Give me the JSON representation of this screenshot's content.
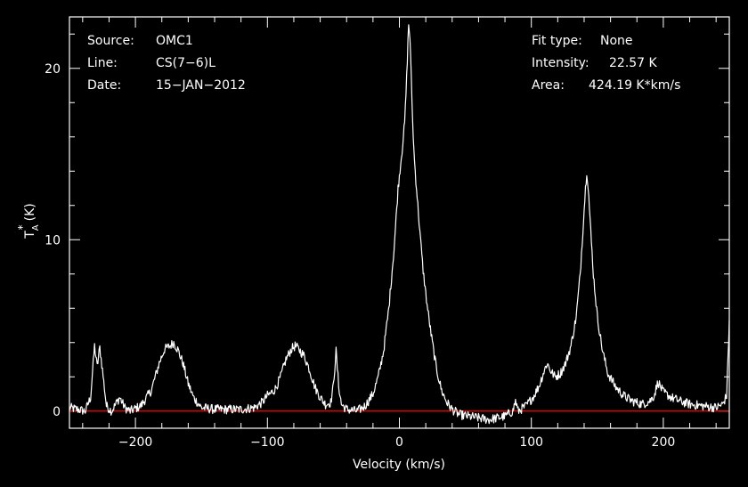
{
  "header": {
    "source_label": "Source:",
    "source_value": "OMC1",
    "line_label": "Line:",
    "line_value": "CS(7−6)L",
    "date_label": "Date:",
    "date_value": "15−JAN−2012",
    "fit_label": "Fit type:",
    "fit_value": "None",
    "intensity_label": "Intensity:",
    "intensity_value": "22.57 K",
    "area_label": "Area:",
    "area_value": "424.19 K*km/s"
  },
  "colors": {
    "background": "#000000",
    "spectrum": "#ffffff",
    "baseline": "#ff0000",
    "axes": "#ffffff"
  },
  "chart_data": {
    "type": "line",
    "title": "",
    "xlabel": "Velocity (km/s)",
    "ylabel": "T_A^* (K)",
    "ylabel_main": "T",
    "ylabel_sup": "*",
    "ylabel_sub": "A",
    "ylabel_unit": "(K)",
    "xlim": [
      -250,
      250
    ],
    "ylim": [
      -1,
      23
    ],
    "x_ticks": [
      -200,
      -100,
      0,
      100,
      200
    ],
    "x_tick_labels": [
      "−200",
      "−100",
      "0",
      "100",
      "200"
    ],
    "y_ticks": [
      0,
      10,
      20
    ],
    "y_tick_labels": [
      "0",
      "10",
      "20"
    ],
    "baseline": 0,
    "grid": false,
    "series": [
      {
        "x": [
          -250,
          -244,
          -238,
          -234,
          -231,
          -229,
          -227,
          -225,
          -222,
          -218,
          -212,
          -208,
          -204,
          -196,
          -188,
          -182,
          -178,
          -174,
          -171,
          -168,
          -164,
          -160,
          -156,
          -150,
          -140,
          -130,
          -120,
          -110,
          -104,
          -100,
          -98,
          -94,
          -90,
          -86,
          -82,
          -79,
          -76,
          -72,
          -68,
          -64,
          -60,
          -56,
          -52,
          -50,
          -48,
          -46,
          -44,
          -40,
          -32,
          -26,
          -20,
          -16,
          -12,
          -8,
          -4,
          -1,
          2,
          4,
          5,
          6,
          7,
          8,
          9,
          10,
          11,
          12,
          14,
          16,
          18,
          21,
          24,
          28,
          32,
          36,
          40,
          45,
          52,
          60,
          68,
          74,
          80,
          86,
          88,
          90,
          96,
          102,
          106,
          109,
          112,
          115,
          118,
          122,
          126,
          130,
          134,
          137,
          139,
          141,
          142,
          143,
          145,
          147,
          150,
          154,
          158,
          164,
          170,
          176,
          184,
          190,
          193,
          196,
          200,
          206,
          212,
          220,
          230,
          240,
          245,
          248,
          250
        ],
        "y": [
          0.2,
          0.1,
          0,
          0.8,
          3.8,
          2.6,
          3.7,
          2.4,
          0.3,
          0,
          0.8,
          0.2,
          0,
          0.3,
          1.2,
          2.8,
          3.6,
          3.8,
          4.0,
          3.6,
          2.8,
          1.6,
          0.8,
          0.2,
          0.1,
          0.1,
          0.1,
          0.2,
          0.5,
          0.9,
          1.0,
          1.3,
          2.0,
          3.0,
          3.6,
          3.8,
          3.6,
          3.2,
          2.4,
          1.4,
          0.8,
          0.4,
          0.5,
          1.5,
          3.5,
          1.5,
          0.4,
          0.1,
          0,
          0.3,
          1.0,
          2.0,
          3.5,
          6.0,
          9.5,
          13.0,
          15.2,
          16.8,
          18.5,
          20.5,
          22.57,
          21.8,
          19.5,
          17.0,
          15.2,
          14.0,
          12.0,
          10.0,
          8.2,
          6.2,
          4.5,
          2.5,
          1.2,
          0.5,
          0.1,
          -0.2,
          -0.3,
          -0.4,
          -0.5,
          -0.4,
          -0.3,
          0.0,
          0.6,
          0.0,
          0.3,
          0.9,
          1.5,
          2.2,
          2.8,
          2.3,
          2.0,
          2.2,
          2.8,
          3.8,
          5.5,
          8.0,
          10.5,
          13.0,
          14.0,
          13.2,
          10.5,
          8.0,
          5.5,
          3.5,
          2.2,
          1.4,
          0.9,
          0.6,
          0.4,
          0.6,
          0.9,
          1.7,
          1.1,
          0.8,
          0.6,
          0.4,
          0.3,
          0.2,
          0.4,
          0.9,
          5.3
        ]
      }
    ]
  }
}
